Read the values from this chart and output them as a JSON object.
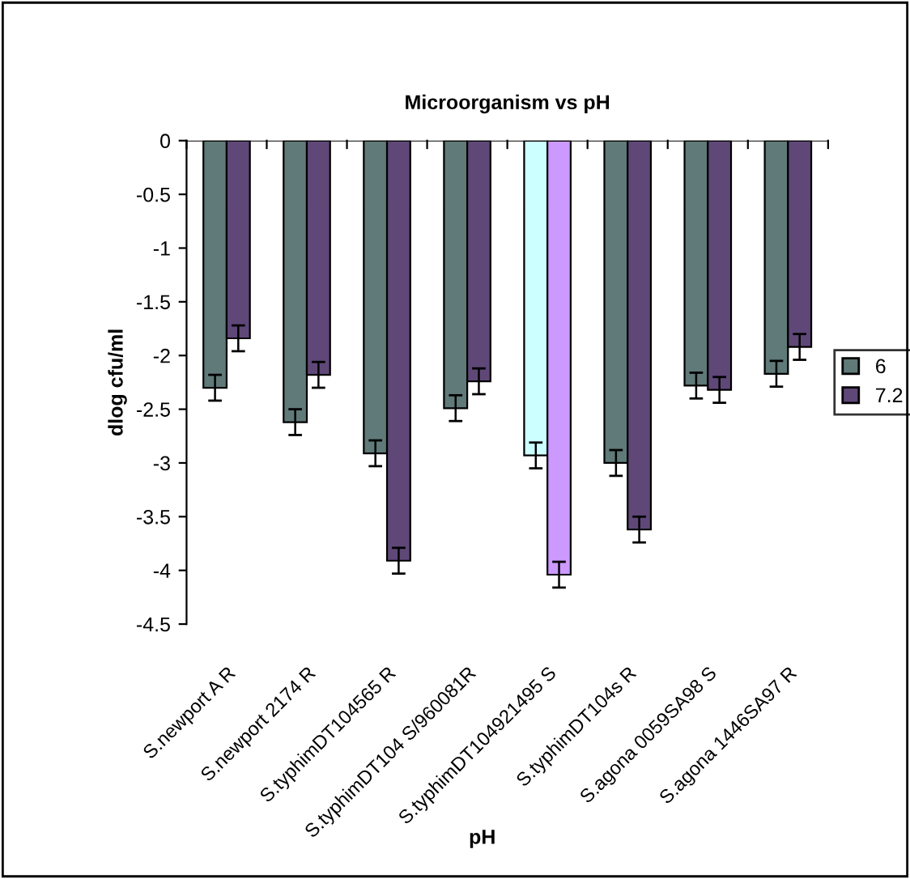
{
  "chart_data": {
    "type": "bar",
    "title": "Microorganism vs pH",
    "xlabel": "pH",
    "ylabel": "dlog cfu/ml",
    "categories": [
      "S.newport A R",
      "S.newport 2174 R",
      "S.typhimDT104565 R",
      "S.typhimDT104 S/960081R",
      "S.typhimDT104921495 S",
      "S.typhimDT104s R",
      "S.agona 0059SA98 S",
      "S.agona 1446SA97 R"
    ],
    "series": [
      {
        "name": "6",
        "color": "#5f7a78",
        "colors": [
          "#5f7a78",
          "#5f7a78",
          "#5f7a78",
          "#5f7a78",
          "#ccffff",
          "#5f7a78",
          "#5f7a78",
          "#5f7a78"
        ],
        "values": [
          -2.3,
          -2.62,
          -2.91,
          -2.49,
          -2.93,
          -3.0,
          -2.28,
          -2.17
        ],
        "errors": [
          0.12,
          0.12,
          0.12,
          0.12,
          0.12,
          0.12,
          0.12,
          0.12
        ]
      },
      {
        "name": "7.2",
        "color": "#5f4878",
        "colors": [
          "#5f4878",
          "#5f4878",
          "#5f4878",
          "#5f4878",
          "#cc99ff",
          "#5f4878",
          "#5f4878",
          "#5f4878"
        ],
        "values": [
          -1.84,
          -2.18,
          -3.91,
          -2.24,
          -4.04,
          -3.62,
          -2.32,
          -1.92
        ],
        "errors": [
          0.12,
          0.12,
          0.12,
          0.12,
          0.12,
          0.12,
          0.12,
          0.12
        ]
      }
    ],
    "ylim": [
      -4.5,
      0
    ],
    "yticks": [
      0,
      -0.5,
      -1,
      -1.5,
      -2,
      -2.5,
      -3,
      -3.5,
      -4,
      -4.5
    ],
    "grid": false,
    "legend": "right"
  }
}
